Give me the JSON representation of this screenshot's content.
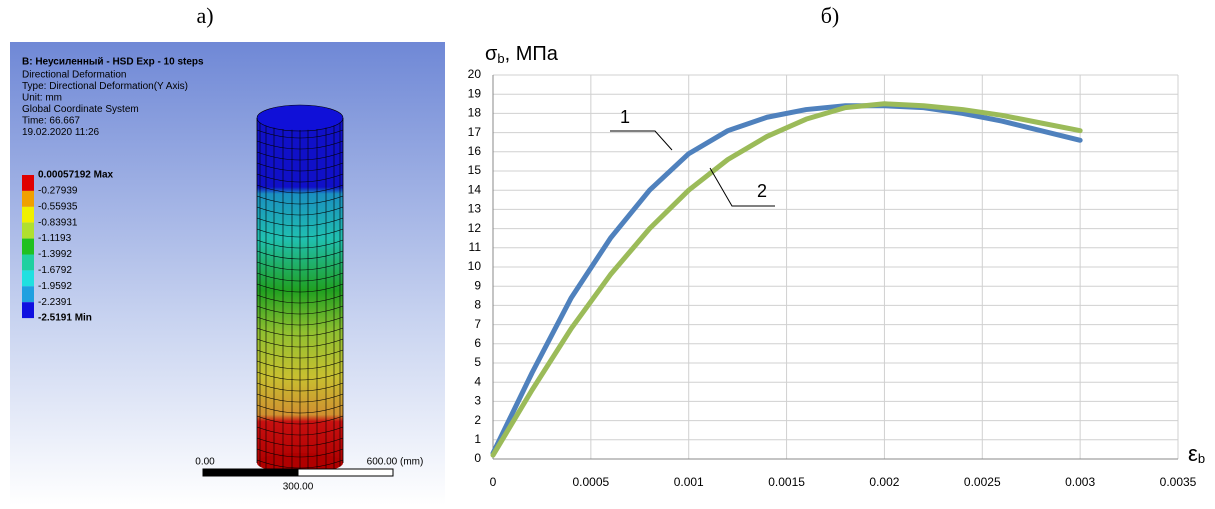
{
  "panel_a": {
    "label": "а)",
    "title": "B: Неусиленный - HSD Exp - 10 steps",
    "info": [
      "Directional Deformation",
      "Type: Directional Deformation(Y Axis)",
      "Unit: mm",
      "Global Coordinate System",
      "Time: 66.667",
      "19.02.2020 11:26"
    ],
    "legend": [
      "0.00057192 Max",
      "-0.27939",
      "-0.55935",
      "-0.83931",
      "-1.1193",
      "-1.3992",
      "-1.6792",
      "-1.9592",
      "-2.2391",
      "-2.5191 Min"
    ],
    "legend_colors": [
      "#e00000",
      "#f0a000",
      "#f0f000",
      "#b0e030",
      "#20c020",
      "#20d0a0",
      "#20e0e0",
      "#20a0e0",
      "#1010e0"
    ],
    "scale": {
      "start": "0.00",
      "mid": "300.00",
      "end": "600.00 (mm)"
    }
  },
  "panel_b_label": "б)",
  "chart_data": {
    "type": "line",
    "ylabel": {
      "symbol": "σ",
      "sub": "b",
      "unit": ", МПа"
    },
    "xlabel": {
      "symbol": "ε",
      "sub": "b"
    },
    "x": [
      0,
      0.0002,
      0.0004,
      0.0006,
      0.0008,
      0.001,
      0.0012,
      0.0014,
      0.0016,
      0.0018,
      0.002,
      0.0022,
      0.0024,
      0.0026,
      0.0028,
      0.003
    ],
    "series": [
      {
        "name": "1",
        "color": "#4f81bd",
        "values": [
          0.3,
          4.5,
          8.4,
          11.5,
          14,
          15.9,
          17.1,
          17.8,
          18.2,
          18.4,
          18.4,
          18.3,
          18.0,
          17.6,
          17.1,
          16.6
        ]
      },
      {
        "name": "2",
        "color": "#9bbb59",
        "values": [
          0.2,
          3.6,
          6.8,
          9.6,
          12,
          14,
          15.6,
          16.8,
          17.7,
          18.3,
          18.5,
          18.4,
          18.2,
          17.9,
          17.5,
          17.1
        ]
      }
    ],
    "xlim": [
      0,
      0.0035
    ],
    "xticks": [
      0,
      0.0005,
      0.001,
      0.0015,
      0.002,
      0.0025,
      0.003,
      0.0035
    ],
    "ylim": [
      0,
      20
    ],
    "yticks": [
      0,
      1,
      2,
      3,
      4,
      5,
      6,
      7,
      8,
      9,
      10,
      11,
      12,
      13,
      14,
      15,
      16,
      17,
      18,
      19,
      20
    ],
    "grid": true
  }
}
